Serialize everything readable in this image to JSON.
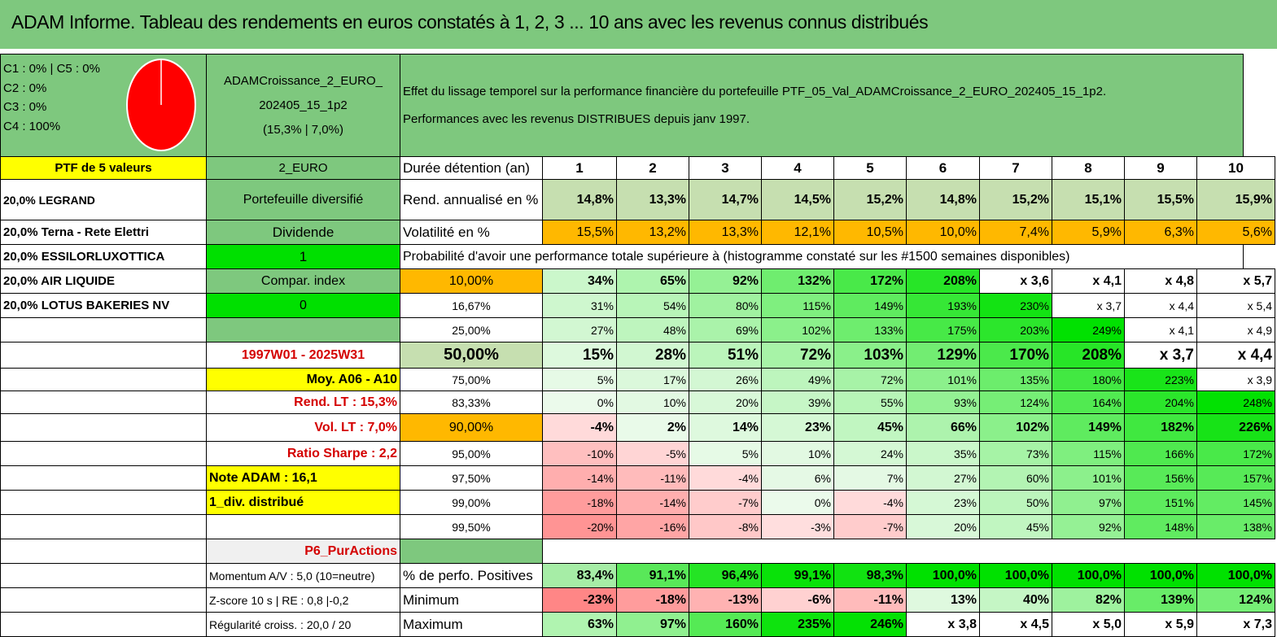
{
  "title": "ADAM Informe. Tableau des rendements en euros constatés à 1, 2, 3 ... 10 ans avec les revenus connus distribués",
  "allocation": {
    "lines": [
      "C1 : 0% | C5 : 0%",
      "C2 : 0%",
      "C3 : 0%",
      "C4 : 100%"
    ],
    "pie_color": "#ff0000"
  },
  "fund": {
    "name_line1": "ADAMCroissance_2_EURO_",
    "name_line2": "202405_15_1p2",
    "stats": "(15,3% | 7,0%)"
  },
  "description": {
    "line1": "Effet du lissage temporel sur la performance financière du portefeuille PTF_05_Val_ADAMCroissance_2_EURO_202405_15_1p2.",
    "line2": "Performances avec les revenus DISTRIBUES depuis janv 1997."
  },
  "colA": [
    "PTF de 5 valeurs",
    "20,0% LEGRAND",
    "20,0% Terna - Rete Elettri",
    "20,0% ESSILORLUXOTTICA",
    "20,0% AIR LIQUIDE",
    "20,0% LOTUS BAKERIES NV"
  ],
  "colB": {
    "currency": "2_EURO",
    "type": "Portefeuille diversifié",
    "dividend_label": "Dividende",
    "dividend_value": "1",
    "compar_label": "Compar. index",
    "compar_value": "0",
    "period": "1997W01 - 2025W31",
    "moy": "Moy. A06 - A10",
    "rend_lt": "Rend. LT : 15,3%",
    "vol_lt": "Vol. LT : 7,0%",
    "sharpe": "Ratio Sharpe : 2,2",
    "note": "Note ADAM : 16,1",
    "div": "1_div. distribué",
    "pur": "P6_PurActions",
    "momentum": "Momentum A/V : 5,0 (10=neutre)",
    "zscore": "Z-score 10 s | RE : 0,8 |-0,2",
    "regularite": "Régularité croiss. : 20,0 / 20"
  },
  "table": {
    "duration_label": "Durée détention (an)",
    "years": [
      "1",
      "2",
      "3",
      "4",
      "5",
      "6",
      "7",
      "8",
      "9",
      "10"
    ],
    "rend_label": "Rend. annualisé en %",
    "rend": [
      "14,8%",
      "13,3%",
      "14,7%",
      "14,5%",
      "15,2%",
      "14,8%",
      "15,2%",
      "15,1%",
      "15,5%",
      "15,9%"
    ],
    "vol_label": "Volatilité en %",
    "vol": [
      "15,5%",
      "13,2%",
      "13,3%",
      "12,1%",
      "10,5%",
      "10,0%",
      "7,4%",
      "5,9%",
      "6,3%",
      "5,6%"
    ],
    "proba_label": "Probabilité d'avoir une performance totale supérieure à (histogramme constaté sur les #1500 semaines disponibles)",
    "rows": [
      {
        "p": "10,00%",
        "v": [
          "34%",
          "65%",
          "92%",
          "132%",
          "172%",
          "208%",
          "x 3,6",
          "x 4,1",
          "x 4,8",
          "x 5,7"
        ],
        "bold": true
      },
      {
        "p": "16,67%",
        "v": [
          "31%",
          "54%",
          "80%",
          "115%",
          "149%",
          "193%",
          "230%",
          "x 3,7",
          "x 4,4",
          "x 5,4"
        ]
      },
      {
        "p": "25,00%",
        "v": [
          "27%",
          "48%",
          "69%",
          "102%",
          "133%",
          "175%",
          "203%",
          "249%",
          "x 4,1",
          "x 4,9"
        ]
      },
      {
        "p": "50,00%",
        "v": [
          "15%",
          "28%",
          "51%",
          "72%",
          "103%",
          "129%",
          "170%",
          "208%",
          "x 3,7",
          "x 4,4"
        ],
        "big": true
      },
      {
        "p": "75,00%",
        "v": [
          "5%",
          "17%",
          "26%",
          "49%",
          "72%",
          "101%",
          "135%",
          "180%",
          "223%",
          "x 3,9"
        ]
      },
      {
        "p": "83,33%",
        "v": [
          "0%",
          "10%",
          "20%",
          "39%",
          "55%",
          "93%",
          "124%",
          "164%",
          "204%",
          "248%"
        ]
      },
      {
        "p": "90,00%",
        "v": [
          "-4%",
          "2%",
          "14%",
          "23%",
          "45%",
          "66%",
          "102%",
          "149%",
          "182%",
          "226%"
        ],
        "bold": true
      },
      {
        "p": "95,00%",
        "v": [
          "-10%",
          "-5%",
          "5%",
          "10%",
          "24%",
          "35%",
          "73%",
          "115%",
          "166%",
          "172%"
        ]
      },
      {
        "p": "97,50%",
        "v": [
          "-14%",
          "-11%",
          "-4%",
          "6%",
          "7%",
          "27%",
          "60%",
          "101%",
          "156%",
          "157%"
        ]
      },
      {
        "p": "99,00%",
        "v": [
          "-18%",
          "-14%",
          "-7%",
          "0%",
          "-4%",
          "23%",
          "50%",
          "97%",
          "151%",
          "145%"
        ]
      },
      {
        "p": "99,50%",
        "v": [
          "-20%",
          "-16%",
          "-8%",
          "-3%",
          "-7%",
          "20%",
          "45%",
          "92%",
          "148%",
          "138%"
        ]
      }
    ],
    "pos_label": "% de perfo. Positives",
    "pos": [
      "83,4%",
      "91,1%",
      "96,4%",
      "99,1%",
      "98,3%",
      "100,0%",
      "100,0%",
      "100,0%",
      "100,0%",
      "100,0%"
    ],
    "min_label": "Minimum",
    "min": [
      "-23%",
      "-18%",
      "-13%",
      "-6%",
      "-11%",
      "13%",
      "40%",
      "82%",
      "139%",
      "124%"
    ],
    "max_label": "Maximum",
    "max": [
      "63%",
      "97%",
      "160%",
      "235%",
      "246%",
      "x 3,8",
      "x 4,5",
      "x 5,0",
      "x 5,9",
      "x 7,3"
    ]
  },
  "colors": {
    "header_green": "#7ec87e",
    "yellow": "#ffff00",
    "orange": "#ffb800",
    "bright_green": "#00e000",
    "light_red": "#f4a0a0"
  }
}
